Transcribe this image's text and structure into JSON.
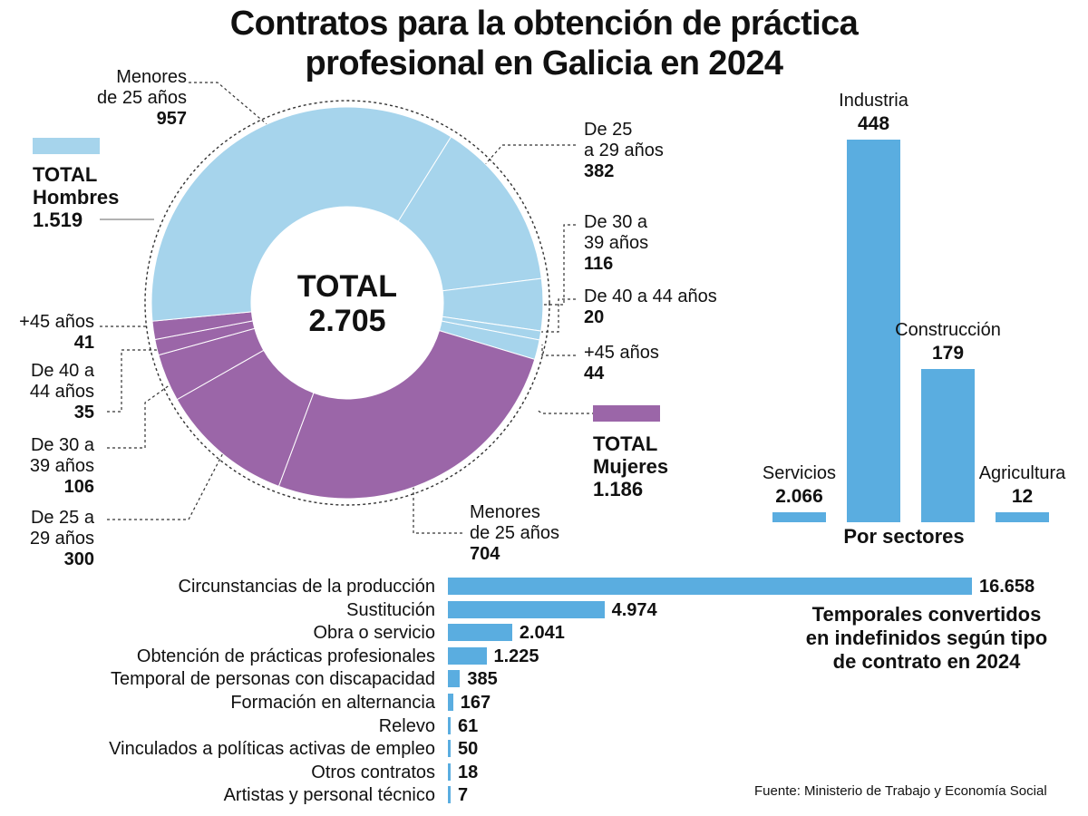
{
  "title": {
    "line1": "Contratos para la obtención de práctica",
    "line2": "profesional en Galicia en 2024"
  },
  "colors": {
    "hombres": "#a6d4ec",
    "mujeres": "#9b66a8",
    "bars": "#5aade0",
    "leader": "#333333"
  },
  "chart_data": [
    {
      "type": "pie",
      "title": "TOTAL 2.705",
      "center_label": {
        "line1": "TOTAL",
        "line2": "2.705"
      },
      "total": 2705,
      "groups": [
        {
          "name": "Hombres",
          "label": "TOTAL",
          "label2": "Hombres",
          "total_display": "1.519",
          "total": 1519,
          "slices": [
            {
              "line1": "Menores",
              "line2": "de 25 años",
              "value_display": "957",
              "value": 957
            },
            {
              "line1": "De 25",
              "line2": "a 29 años",
              "value_display": "382",
              "value": 382
            },
            {
              "line1": "De 30 a",
              "line2": "39 años",
              "value_display": "116",
              "value": 116
            },
            {
              "line1": "De 40 a 44 años",
              "line2": "",
              "value_display": "20",
              "value": 20
            },
            {
              "line1": "+45 años",
              "line2": "",
              "value_display": "44",
              "value": 44
            }
          ]
        },
        {
          "name": "Mujeres",
          "label": "TOTAL",
          "label2": "Mujeres",
          "total_display": "1.186",
          "total": 1186,
          "slices": [
            {
              "line1": "Menores",
              "line2": "de 25 años",
              "value_display": "704",
              "value": 704
            },
            {
              "line1": "De 25 a",
              "line2": "29 años",
              "value_display": "300",
              "value": 300
            },
            {
              "line1": "De 30 a",
              "line2": "39 años",
              "value_display": "106",
              "value": 106
            },
            {
              "line1": "De 40 a",
              "line2": "44 años",
              "value_display": "35",
              "value": 35
            },
            {
              "line1": "+45 años",
              "line2": "",
              "value_display": "41",
              "value": 41
            }
          ]
        }
      ]
    },
    {
      "type": "bar",
      "title": "Por sectores",
      "categories": [
        "Servicios",
        "Industria",
        "Construcción",
        "Agricultura"
      ],
      "values": [
        2066,
        448,
        179,
        12
      ],
      "value_labels": [
        "2.066",
        "448",
        "179",
        "12"
      ]
    },
    {
      "type": "bar",
      "orientation": "horizontal",
      "title": "Temporales convertidos en indefinidos según tipo de contrato en 2024",
      "title_lines": [
        "Temporales convertidos",
        "en indefinidos según tipo",
        "de contrato en 2024"
      ],
      "categories": [
        "Circunstancias de la producción",
        "Sustitución",
        "Obra o servicio",
        "Obtención de prácticas profesionales",
        "Temporal de personas con discapacidad",
        "Formación en alternancia",
        "Relevo",
        "Vinculados a políticas activas de empleo",
        "Otros contratos",
        "Artistas y personal técnico"
      ],
      "values": [
        16658,
        4974,
        2041,
        1225,
        385,
        167,
        61,
        50,
        18,
        7
      ],
      "value_labels": [
        "16.658",
        "4.974",
        "2.041",
        "1.225",
        "385",
        "167",
        "61",
        "50",
        "18",
        "7"
      ]
    }
  ],
  "source": "Fuente: Ministerio de Trabajo y Economía Social"
}
